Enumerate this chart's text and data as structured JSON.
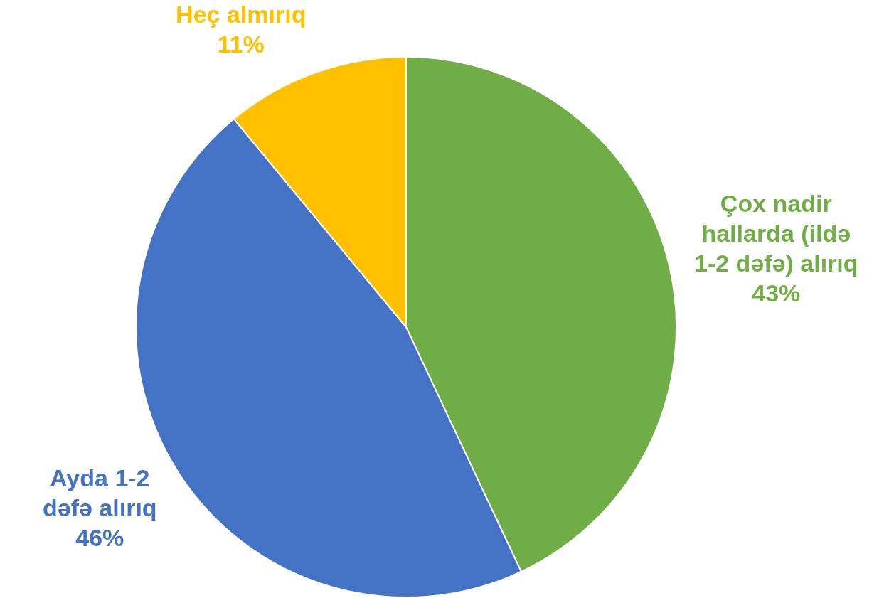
{
  "chart_data": {
    "type": "pie",
    "categories": [
      "Çox nadir hallarda (ildə 1-2 dəfə) alırıq",
      "Ayda 1-2 dəfə alırıq",
      "Heç almırıq"
    ],
    "values": [
      43,
      46,
      11
    ],
    "colors": [
      "#70ad47",
      "#4472c4",
      "#ffc000"
    ],
    "value_labels": [
      "43%",
      "46%",
      "11%"
    ],
    "legend": false
  }
}
